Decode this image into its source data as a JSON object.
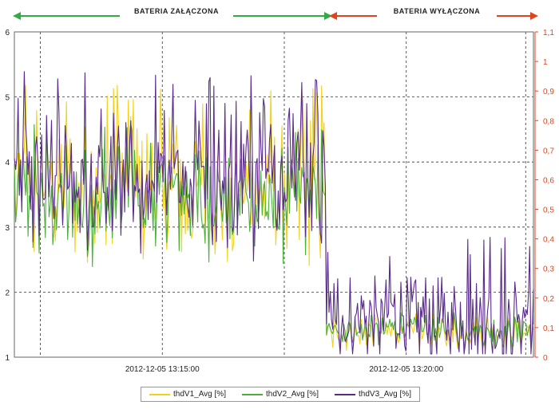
{
  "chart_data": {
    "type": "line",
    "banners": {
      "left": {
        "label": "BATERIA ZAŁĄCZONA",
        "color": "#33aa44"
      },
      "right": {
        "label": "BATERIA WYŁĄCZONA",
        "color": "#e0441c"
      }
    },
    "x_ticks": [
      "2012-12-05 13:15:00",
      "2012-12-05 13:20:00"
    ],
    "y_left": {
      "ticks": [
        "1",
        "2",
        "3",
        "4",
        "5",
        "6"
      ],
      "ylim": [
        1,
        6
      ]
    },
    "y_right": {
      "ticks": [
        "0",
        "0,1",
        "0,2",
        "0,3",
        "0,4",
        "0,5",
        "0,6",
        "0,7",
        "0,8",
        "0,9",
        "1",
        "1,1"
      ],
      "ylim": [
        0,
        1.1
      ],
      "color": "#e0441c"
    },
    "grid": true,
    "legend_placement": "bottom",
    "switch_fraction": 0.6,
    "series": [
      {
        "name": "thdV1_Avg [%]",
        "color": "#f2d21b",
        "segment_on": {
          "mean": 3.55,
          "range": [
            2.4,
            5.2
          ]
        },
        "segment_off": {
          "mean": 1.38,
          "range": [
            1.05,
            1.75
          ]
        }
      },
      {
        "name": "thdV2_Avg [%]",
        "color": "#4caf3a",
        "segment_on": {
          "mean": 3.4,
          "range": [
            2.3,
            4.6
          ]
        },
        "segment_off": {
          "mean": 1.42,
          "range": [
            1.05,
            1.8
          ]
        }
      },
      {
        "name": "thdV3_Avg [%]",
        "color": "#5a2a8a",
        "segment_on": {
          "mean": 3.7,
          "range": [
            2.4,
            5.45
          ]
        },
        "segment_off": {
          "mean": 1.5,
          "range": [
            1.05,
            2.9
          ]
        }
      }
    ]
  }
}
